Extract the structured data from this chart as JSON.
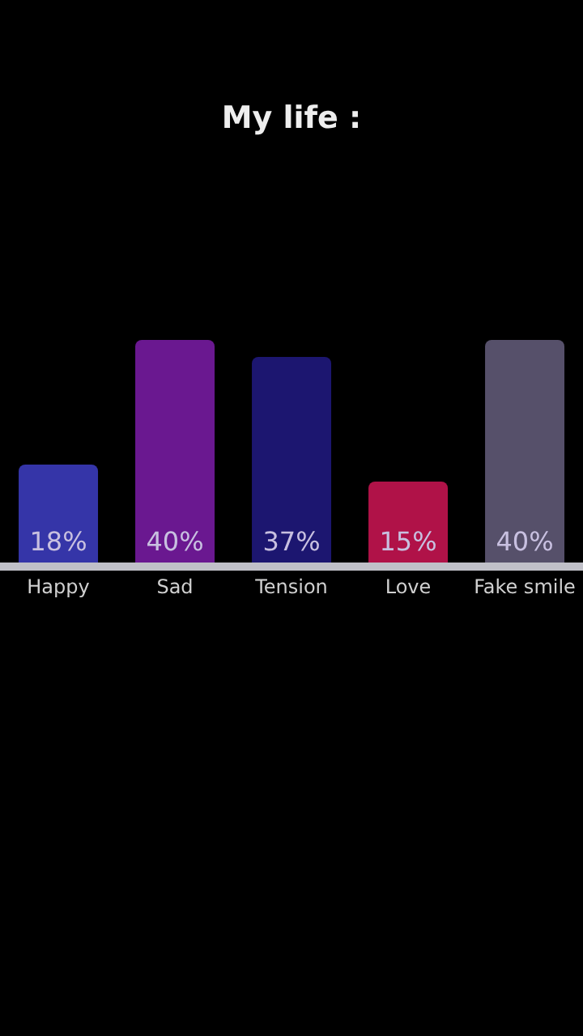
{
  "chart_data": {
    "type": "bar",
    "title": "My life :",
    "categories": [
      "Happy",
      "Sad",
      "Tension",
      "Love",
      "Fake smile"
    ],
    "values": [
      18,
      40,
      37,
      15,
      40
    ],
    "colors": [
      "#3535a8",
      "#6a1890",
      "#1c1670",
      "#b01248",
      "#56506a"
    ],
    "value_labels": [
      "18%",
      "40%",
      "37%",
      "15%",
      "40%"
    ],
    "grid": false,
    "legend": false
  }
}
